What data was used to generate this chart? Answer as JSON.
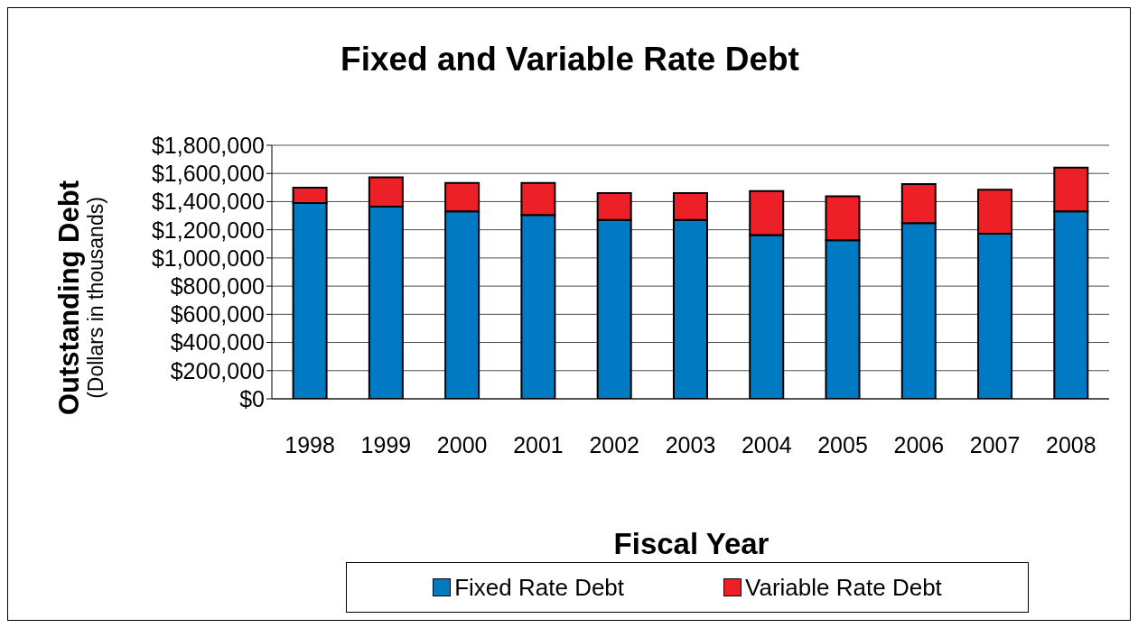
{
  "chart_data": {
    "type": "bar",
    "title": "Fixed and Variable Rate Debt",
    "xlabel": "Fiscal Year",
    "ylabel": "Outstanding Debt\n(Dollars in thousands)",
    "categories": [
      "1998",
      "1999",
      "2000",
      "2001",
      "2002",
      "2003",
      "2004",
      "2005",
      "2006",
      "2007",
      "2008"
    ],
    "stacked": true,
    "series": [
      {
        "name": "Fixed Rate Debt",
        "color": "#007ac2",
        "values": [
          1390000,
          1365000,
          1330000,
          1305000,
          1270000,
          1270000,
          1162000,
          1126000,
          1247000,
          1172000,
          1330000
        ]
      },
      {
        "name": "Variable Rate Debt",
        "color": "#ed1f27",
        "values": [
          109000,
          207000,
          203000,
          228000,
          190000,
          190000,
          313000,
          312000,
          277000,
          313000,
          312000
        ]
      }
    ],
    "ylim": [
      0,
      1800000
    ],
    "yticks": [
      {
        "value": 0,
        "label": "$0"
      },
      {
        "value": 200000,
        "label": "$200,000"
      },
      {
        "value": 400000,
        "label": "$400,000"
      },
      {
        "value": 600000,
        "label": "$600,000"
      },
      {
        "value": 800000,
        "label": "$800,000"
      },
      {
        "value": 1000000,
        "label": "$1,000,000"
      },
      {
        "value": 1200000,
        "label": "$1,200,000"
      },
      {
        "value": 1400000,
        "label": "$1,400,000"
      },
      {
        "value": 1600000,
        "label": "$1,600,000"
      },
      {
        "value": 1800000,
        "label": "$1,800,000"
      }
    ],
    "grid": "y",
    "legend": "bottom"
  }
}
